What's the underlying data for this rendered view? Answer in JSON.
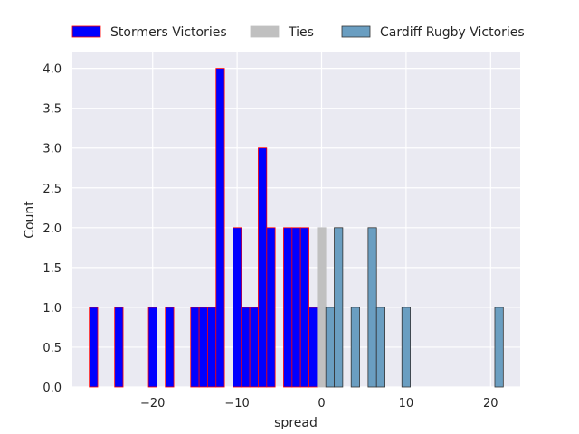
{
  "chart_data": {
    "type": "bar",
    "xlabel": "spread",
    "ylabel": "Count",
    "xlim": [
      -29.5,
      23.5
    ],
    "ylim": [
      0,
      4.2
    ],
    "xticks": [
      -20,
      -10,
      0,
      10,
      20
    ],
    "xtick_labels": [
      "−20",
      "−10",
      "0",
      "10",
      "20"
    ],
    "yticks": [
      0,
      0.5,
      1,
      1.5,
      2,
      2.5,
      3,
      3.5,
      4
    ],
    "ytick_labels": [
      "0.0",
      "0.5",
      "1.0",
      "1.5",
      "2.0",
      "2.5",
      "3.0",
      "3.5",
      "4.0"
    ],
    "grid": true,
    "legend_placement": "top, above plot",
    "bin_width": 1,
    "series": [
      {
        "name": "Stormers Victories",
        "fill": "#0000ff",
        "edge": "#ff0000",
        "bins": [
          {
            "x": -27,
            "count": 1
          },
          {
            "x": -24,
            "count": 1
          },
          {
            "x": -20,
            "count": 1
          },
          {
            "x": -18,
            "count": 1
          },
          {
            "x": -15,
            "count": 1
          },
          {
            "x": -14,
            "count": 1
          },
          {
            "x": -13,
            "count": 1
          },
          {
            "x": -12,
            "count": 4
          },
          {
            "x": -10,
            "count": 2
          },
          {
            "x": -9,
            "count": 1
          },
          {
            "x": -8,
            "count": 1
          },
          {
            "x": -7,
            "count": 3
          },
          {
            "x": -6,
            "count": 2
          },
          {
            "x": -4,
            "count": 2
          },
          {
            "x": -3,
            "count": 2
          },
          {
            "x": -2,
            "count": 2
          },
          {
            "x": -1,
            "count": 1
          }
        ]
      },
      {
        "name": "Ties",
        "fill": "#c0c0c0",
        "edge": "#c0c0c0",
        "bins": [
          {
            "x": 0,
            "count": 2
          }
        ]
      },
      {
        "name": "Cardiff Rugby Victories",
        "fill": "#6a9ec1",
        "edge": "#333333",
        "bins": [
          {
            "x": 1,
            "count": 1
          },
          {
            "x": 2,
            "count": 2
          },
          {
            "x": 4,
            "count": 1
          },
          {
            "x": 6,
            "count": 2
          },
          {
            "x": 7,
            "count": 1
          },
          {
            "x": 10,
            "count": 1
          },
          {
            "x": 21,
            "count": 1
          }
        ]
      }
    ]
  }
}
